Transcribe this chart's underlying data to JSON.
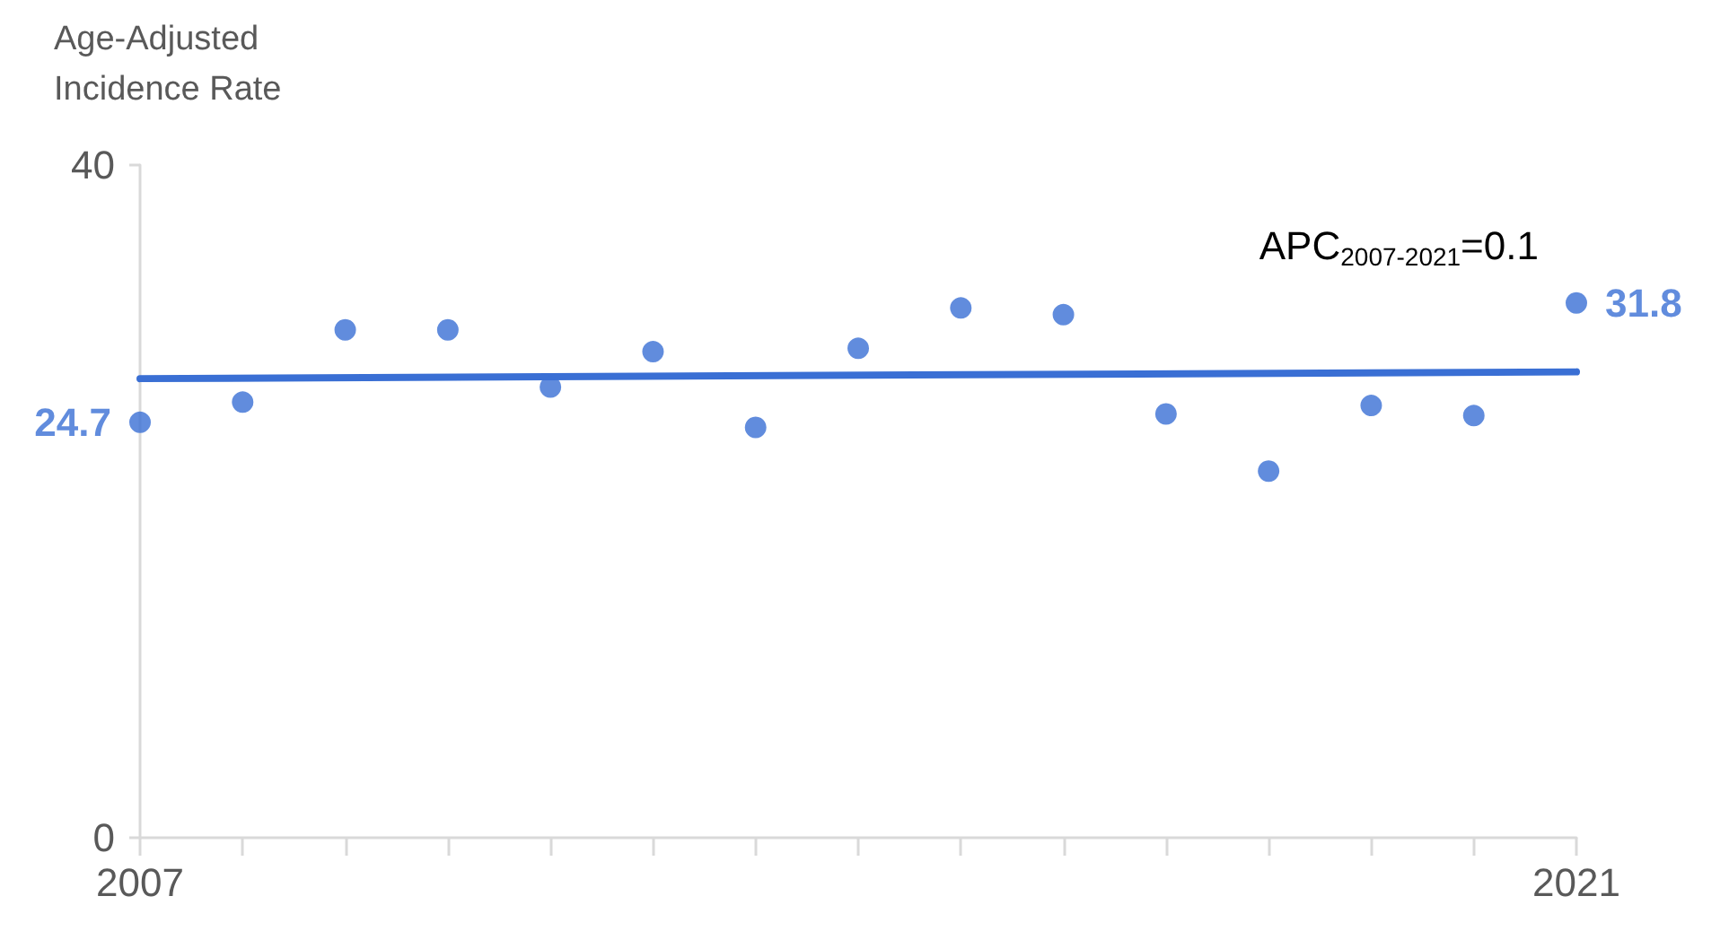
{
  "chart_data": {
    "type": "scatter",
    "ylabel": "Age-Adjusted Incidence Rate",
    "annotations": [
      "APC$_{2007-2021}$=0.1"
    ],
    "x": [
      2007,
      2008,
      2009,
      2010,
      2011,
      2012,
      2013,
      2014,
      2015,
      2016,
      2017,
      2018,
      2019,
      2020,
      2021
    ],
    "series": [
      {
        "color": "#3a6fd4",
        "marker": "circle",
        "values": [
          24.7,
          25.9,
          30.2,
          30.2,
          26.8,
          28.9,
          24.4,
          29.1,
          31.5,
          31.1,
          25.2,
          21.8,
          25.7,
          25.1,
          31.8
        ],
        "value_labels": [
          "24.7",
          null,
          null,
          null,
          null,
          null,
          null,
          null,
          null,
          null,
          null,
          null,
          null,
          null,
          "31.8"
        ]
      },
      {
        "type": "line",
        "marker": "none",
        "color": "#3a6fd4",
        "x": [
          2007,
          2021
        ],
        "values": [
          27.3,
          27.7
        ]
      }
    ],
    "xlim": [
      2007,
      2021
    ],
    "xticks": [
      2007,
      {
        "value": 2008,
        "label": null
      },
      {
        "value": 2009,
        "label": null
      },
      {
        "value": 2010,
        "label": null
      },
      {
        "value": 2011,
        "label": null
      },
      {
        "value": 2012,
        "label": null
      },
      {
        "value": 2013,
        "label": null
      },
      {
        "value": 2014,
        "label": null
      },
      {
        "value": 2015,
        "label": null
      },
      {
        "value": 2016,
        "label": null
      },
      {
        "value": 2017,
        "label": null
      },
      {
        "value": 2018,
        "label": null
      },
      {
        "value": 2019,
        "label": null
      },
      {
        "value": 2020,
        "label": null
      },
      2021
    ],
    "ylim": [
      0,
      40
    ],
    "yticks": [
      0,
      40
    ],
    "grid": false,
    "line_style": "solid"
  }
}
